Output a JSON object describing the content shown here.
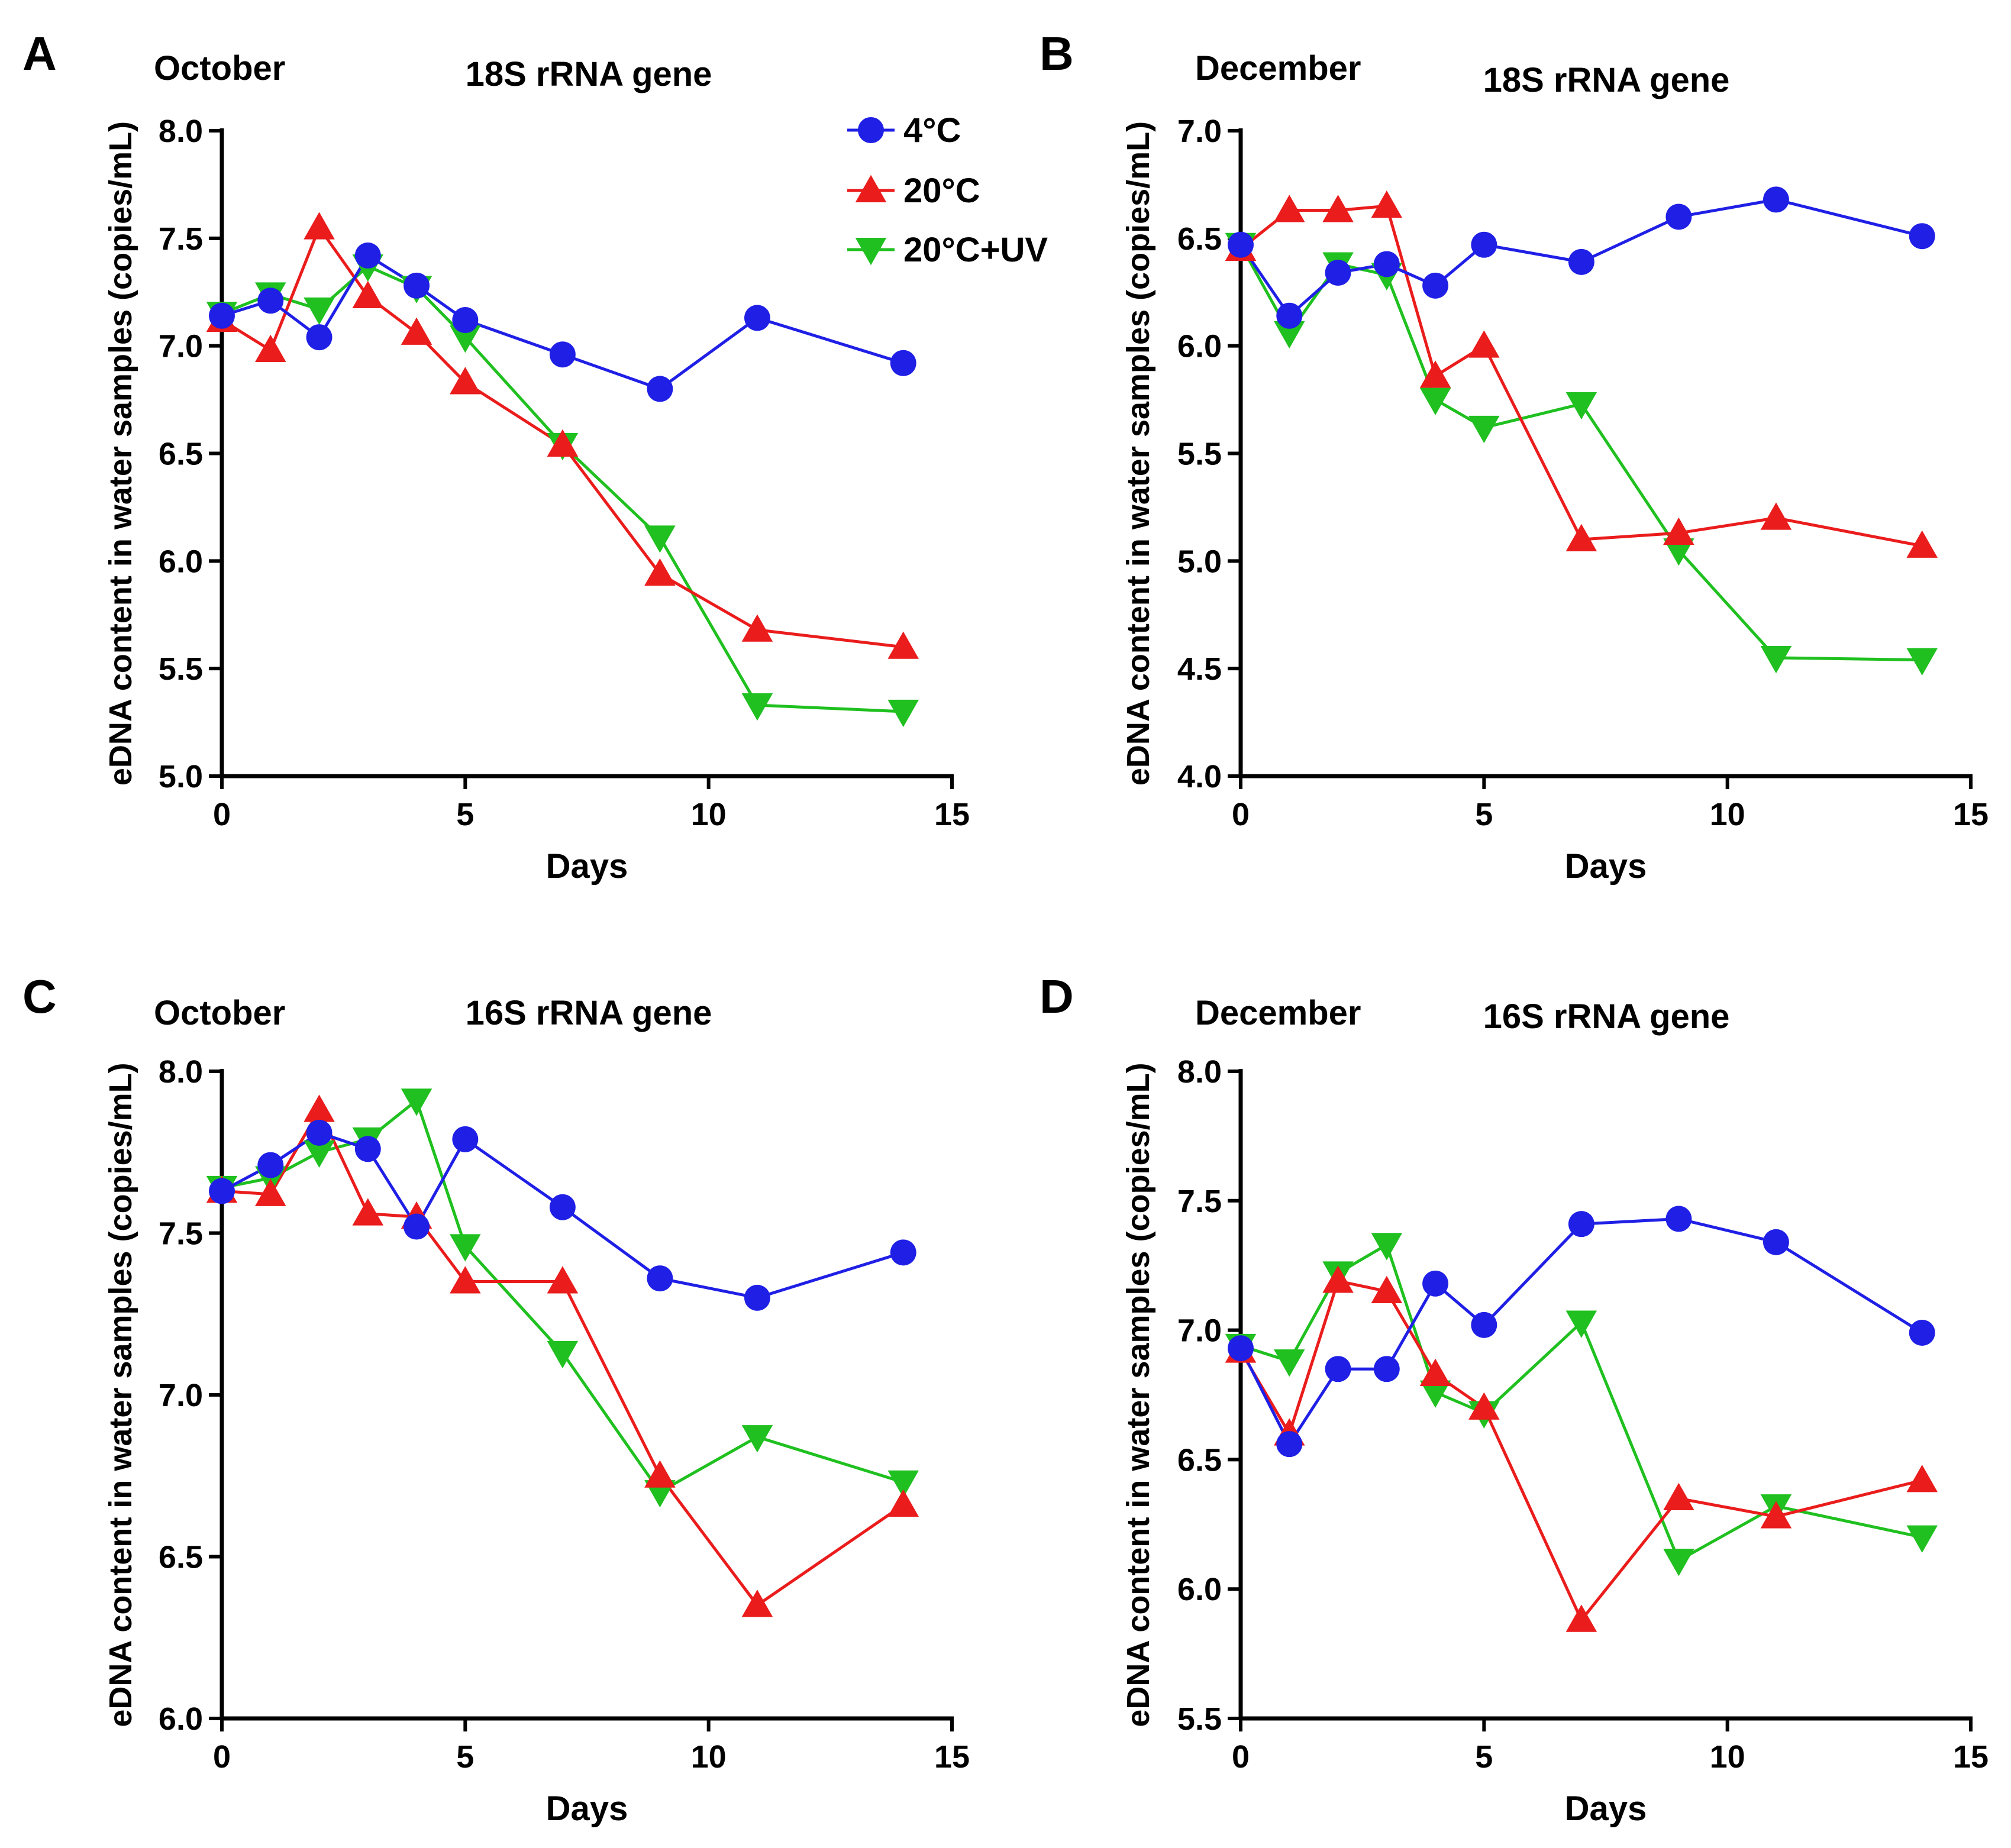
{
  "figure": {
    "colors": {
      "4C": "#1f1fe6",
      "20C": "#ea1c1c",
      "20CUV": "#1fc01f"
    },
    "legend": [
      {
        "key": "4C",
        "label": "4°C",
        "marker": "circle"
      },
      {
        "key": "20C",
        "label": "20°C",
        "marker": "triangle-up"
      },
      {
        "key": "20CUV",
        "label": "20°C+UV",
        "marker": "triangle-down"
      }
    ]
  },
  "chart_data": [
    {
      "panel": "A",
      "type": "line",
      "month": "October",
      "title": "18S rRNA gene",
      "xlabel": "Days",
      "ylabel": "eDNA content in water samples (copies/mL)",
      "xlim": [
        0,
        15
      ],
      "ylim": [
        5.0,
        8.0
      ],
      "xticks": [
        0,
        5,
        10,
        15
      ],
      "xtick_labels": [
        "0",
        "5",
        "10",
        "15"
      ],
      "yticks": [
        5.0,
        5.5,
        6.0,
        6.5,
        7.0,
        7.5,
        8.0
      ],
      "ytick_labels": [
        "5.0",
        "5.5",
        "6.0",
        "6.5",
        "7.0",
        "7.5",
        "8.0"
      ],
      "x": [
        0,
        1,
        2,
        3,
        4,
        5,
        7,
        9,
        11,
        14
      ],
      "series": [
        {
          "key": "20CUV",
          "name": "20°C+UV",
          "values": [
            7.15,
            7.24,
            7.17,
            7.37,
            7.27,
            7.04,
            6.54,
            6.11,
            5.33,
            5.3
          ]
        },
        {
          "key": "20C",
          "name": "20°C",
          "values": [
            7.12,
            6.98,
            7.55,
            7.23,
            7.06,
            6.83,
            6.54,
            5.94,
            5.68,
            5.6
          ]
        },
        {
          "key": "4C",
          "name": "4°C",
          "values": [
            7.14,
            7.21,
            7.04,
            7.42,
            7.28,
            7.12,
            6.96,
            6.8,
            7.13,
            6.92
          ]
        }
      ]
    },
    {
      "panel": "B",
      "type": "line",
      "month": "December",
      "title": "18S rRNA gene",
      "xlabel": "Days",
      "ylabel": "eDNA content in water samples (copies/mL)",
      "xlim": [
        0,
        15
      ],
      "ylim": [
        4.0,
        7.0
      ],
      "xticks": [
        0,
        5,
        10,
        15
      ],
      "xtick_labels": [
        "0",
        "5",
        "10",
        "15"
      ],
      "yticks": [
        4.0,
        4.5,
        5.0,
        5.5,
        6.0,
        6.5,
        7.0
      ],
      "ytick_labels": [
        "4.0",
        "4.5",
        "5.0",
        "5.5",
        "6.0",
        "6.5",
        "7.0"
      ],
      "x": [
        0,
        1,
        2,
        3,
        4,
        5,
        7,
        9,
        11,
        14
      ],
      "series": [
        {
          "key": "20CUV",
          "name": "20°C+UV",
          "values": [
            6.47,
            6.06,
            6.38,
            6.33,
            5.75,
            5.62,
            5.73,
            5.05,
            4.55,
            4.54
          ]
        },
        {
          "key": "20C",
          "name": "20°C",
          "values": [
            6.45,
            6.63,
            6.63,
            6.65,
            5.86,
            6.0,
            5.1,
            5.13,
            5.2,
            5.07
          ]
        },
        {
          "key": "4C",
          "name": "4°C",
          "values": [
            6.47,
            6.14,
            6.34,
            6.38,
            6.28,
            6.47,
            6.39,
            6.6,
            6.68,
            6.51
          ]
        }
      ]
    },
    {
      "panel": "C",
      "type": "line",
      "month": "October",
      "title": "16S rRNA gene",
      "xlabel": "Days",
      "ylabel": "eDNA content in water samples (copies/mL)",
      "xlim": [
        0,
        15
      ],
      "ylim": [
        6.0,
        8.0
      ],
      "xticks": [
        0,
        5,
        10,
        15
      ],
      "xtick_labels": [
        "0",
        "5",
        "10",
        "15"
      ],
      "yticks": [
        6.0,
        6.5,
        7.0,
        7.5,
        8.0
      ],
      "ytick_labels": [
        "6.0",
        "6.5",
        "7.0",
        "7.5",
        "8.0"
      ],
      "x": [
        0,
        1,
        2,
        3,
        4,
        5,
        7,
        9,
        11,
        14
      ],
      "series": [
        {
          "key": "20CUV",
          "name": "20°C+UV",
          "values": [
            7.64,
            7.67,
            7.75,
            7.79,
            7.91,
            7.46,
            7.13,
            6.7,
            6.87,
            6.73
          ]
        },
        {
          "key": "20C",
          "name": "20°C",
          "values": [
            7.63,
            7.62,
            7.88,
            7.56,
            7.55,
            7.35,
            7.35,
            6.75,
            6.35,
            6.66
          ]
        },
        {
          "key": "4C",
          "name": "4°C",
          "values": [
            7.63,
            7.71,
            7.81,
            7.76,
            7.52,
            7.79,
            7.58,
            7.36,
            7.3,
            7.44
          ]
        }
      ]
    },
    {
      "panel": "D",
      "type": "line",
      "month": "December",
      "title": "16S rRNA gene",
      "xlabel": "Days",
      "ylabel": "eDNA content in water samples (copies/mL)",
      "xlim": [
        0,
        15
      ],
      "ylim": [
        5.5,
        8.0
      ],
      "xticks": [
        0,
        5,
        10,
        15
      ],
      "xtick_labels": [
        "0",
        "5",
        "10",
        "15"
      ],
      "yticks": [
        5.5,
        6.0,
        6.5,
        7.0,
        7.5,
        8.0
      ],
      "ytick_labels": [
        "5.5",
        "6.0",
        "6.5",
        "7.0",
        "7.5",
        "8.0"
      ],
      "x": [
        0,
        1,
        2,
        3,
        4,
        5,
        7,
        9,
        11,
        14
      ],
      "series": [
        {
          "key": "20CUV",
          "name": "20°C+UV",
          "values": [
            6.94,
            6.88,
            7.22,
            7.33,
            6.76,
            6.68,
            7.03,
            6.11,
            6.32,
            6.2
          ]
        },
        {
          "key": "20C",
          "name": "20°C",
          "values": [
            6.92,
            6.6,
            7.19,
            7.15,
            6.83,
            6.7,
            5.88,
            6.35,
            6.28,
            6.42
          ]
        },
        {
          "key": "4C",
          "name": "4°C",
          "values": [
            6.93,
            6.56,
            6.85,
            6.85,
            7.18,
            7.02,
            7.41,
            7.43,
            7.34,
            6.99
          ]
        }
      ]
    }
  ]
}
